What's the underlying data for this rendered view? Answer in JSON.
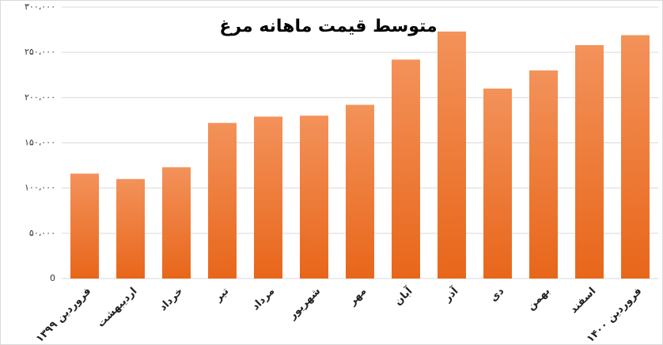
{
  "chart_data": {
    "type": "bar",
    "title": "متوسط قیمت ماهانه مرغ",
    "categories": [
      "فروردین ۱۳۹۹",
      "اردیبهشت",
      "خرداد",
      "تیر",
      "مرداد",
      "شهریور",
      "مهر",
      "آبان",
      "آذر",
      "دی",
      "بهمن",
      "اسفند",
      "فروردین ۱۴۰۰"
    ],
    "values": [
      116000,
      110000,
      123000,
      172000,
      179000,
      180000,
      192000,
      242000,
      273000,
      210000,
      230000,
      258000,
      269000
    ],
    "color": "#f07f2a",
    "ylim": [
      0,
      300000
    ],
    "yticks": [
      0,
      {
        "value": 50000,
        "label": "۵۰،۰۰۰"
      },
      {
        "value": 100000,
        "label": "۱۰۰،۰۰۰"
      },
      {
        "value": 150000,
        "label": "۱۵۰،۰۰۰"
      },
      {
        "value": 200000,
        "label": "۲۰۰،۰۰۰"
      },
      {
        "value": 250000,
        "label": "۲۵۰،۰۰۰"
      },
      {
        "value": 300000,
        "label": "۳۰۰،۰۰۰"
      }
    ],
    "grid": true
  }
}
